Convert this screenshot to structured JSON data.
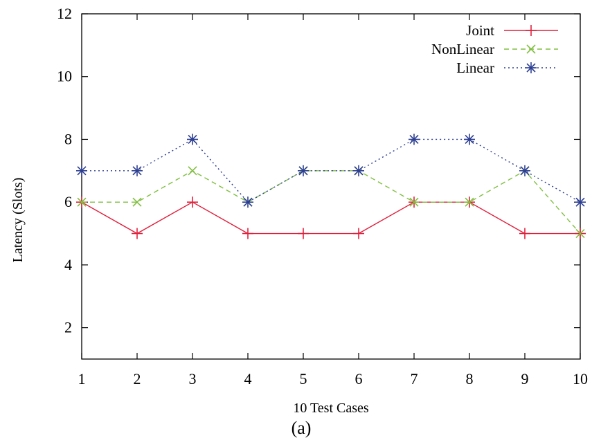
{
  "chart_data": {
    "type": "line",
    "xlabel": "10 Test Cases",
    "ylabel": "Latency (Slots)",
    "caption": "(a)",
    "x": [
      1,
      2,
      3,
      4,
      5,
      6,
      7,
      8,
      9,
      10
    ],
    "xlim": [
      1,
      10
    ],
    "ylim": [
      1,
      12
    ],
    "xticks": [
      1,
      2,
      3,
      4,
      5,
      6,
      7,
      8,
      9,
      10
    ],
    "yticks": [
      2,
      4,
      6,
      8,
      10,
      12
    ],
    "grid": false,
    "legend_position": "top-right",
    "series": [
      {
        "name": "Joint",
        "values": [
          6,
          5,
          6,
          5,
          5,
          5,
          6,
          6,
          5,
          5
        ],
        "color": "#e0203c",
        "line": "solid",
        "marker": "plus"
      },
      {
        "name": "NonLinear",
        "values": [
          6,
          6,
          7,
          6,
          7,
          7,
          6,
          6,
          7,
          5
        ],
        "color": "#7fbf3f",
        "line": "dashed",
        "marker": "cross"
      },
      {
        "name": "Linear",
        "values": [
          7,
          7,
          8,
          6,
          7,
          7,
          8,
          8,
          7,
          6
        ],
        "color": "#2c3e91",
        "line": "dotted",
        "marker": "asterisk"
      }
    ]
  }
}
